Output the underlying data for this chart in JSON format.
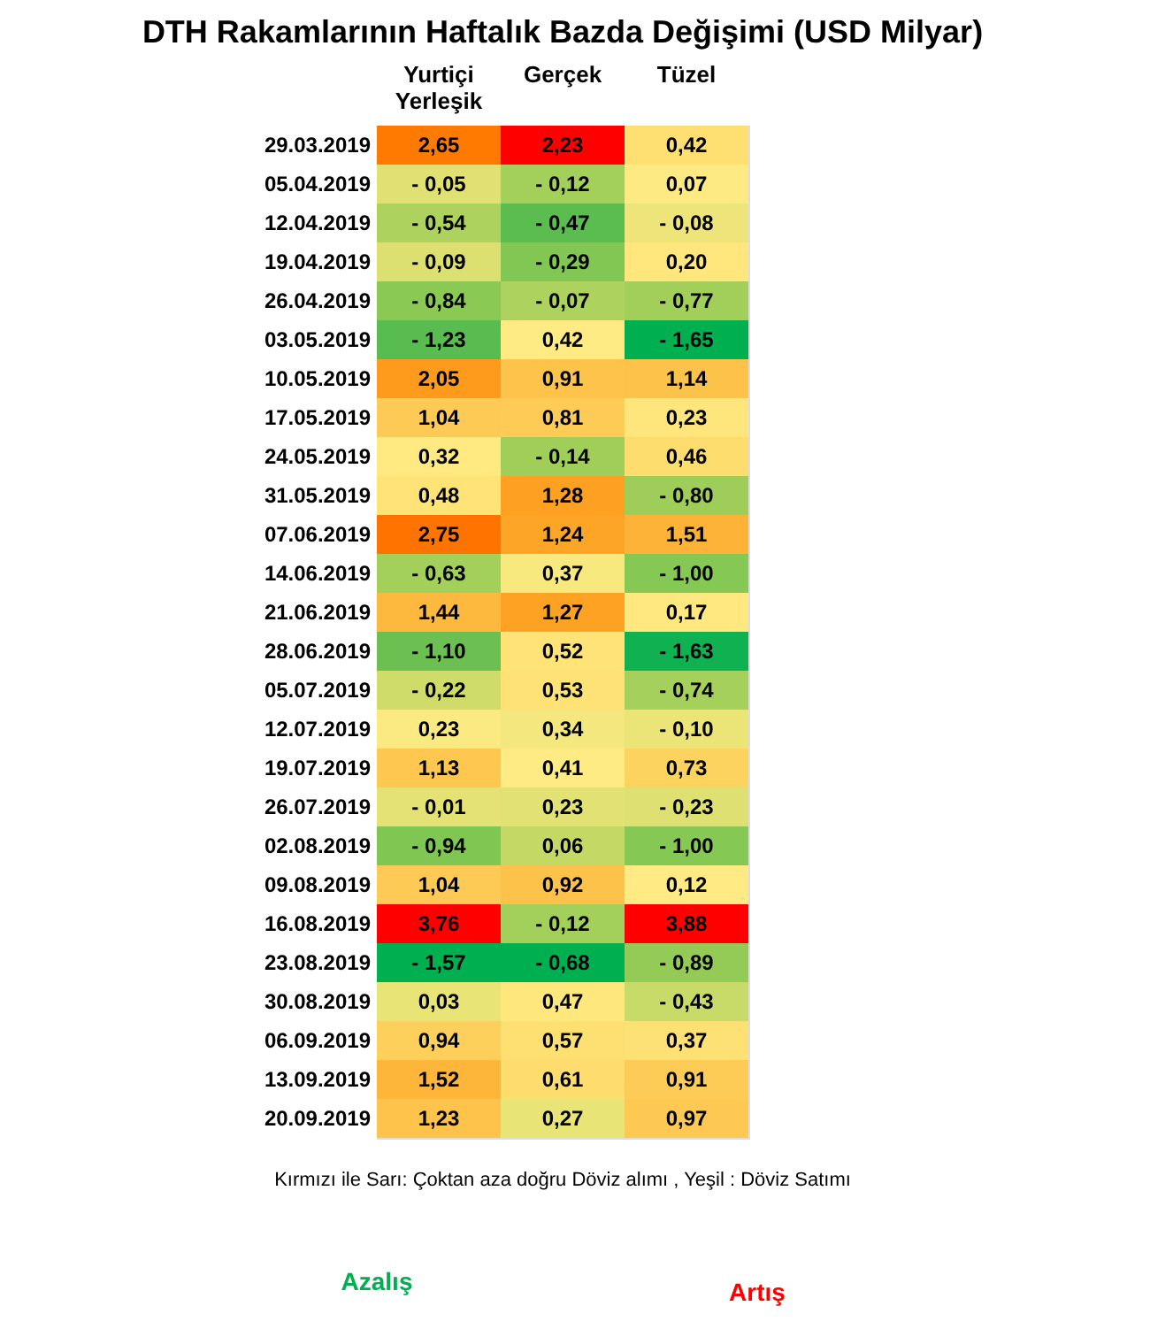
{
  "chart_data": {
    "type": "heatmap",
    "title": "DTH Rakamlarının Haftalık Bazda Değişimi (USD Milyar)",
    "categories": [
      "Yurtiçi Yerleşik",
      "Gerçek",
      "Tüzel"
    ],
    "y_categories": [
      "29.03.2019",
      "05.04.2019",
      "12.04.2019",
      "19.04.2019",
      "26.04.2019",
      "03.05.2019",
      "10.05.2019",
      "17.05.2019",
      "24.05.2019",
      "31.05.2019",
      "07.06.2019",
      "14.06.2019",
      "21.06.2019",
      "28.06.2019",
      "05.07.2019",
      "12.07.2019",
      "19.07.2019",
      "26.07.2019",
      "02.08.2019",
      "09.08.2019",
      "16.08.2019",
      "23.08.2019",
      "30.08.2019",
      "06.09.2019",
      "13.09.2019",
      "20.09.2019"
    ],
    "cells": [
      [
        2.65,
        2.23,
        0.42
      ],
      [
        -0.05,
        -0.12,
        0.07
      ],
      [
        -0.54,
        -0.47,
        -0.08
      ],
      [
        -0.09,
        -0.29,
        0.2
      ],
      [
        -0.84,
        -0.07,
        -0.77
      ],
      [
        -1.23,
        0.42,
        -1.65
      ],
      [
        2.05,
        0.91,
        1.14
      ],
      [
        1.04,
        0.81,
        0.23
      ],
      [
        0.32,
        -0.14,
        0.46
      ],
      [
        0.48,
        1.28,
        -0.8
      ],
      [
        2.75,
        1.24,
        1.51
      ],
      [
        -0.63,
        0.37,
        -1.0
      ],
      [
        1.44,
        1.27,
        0.17
      ],
      [
        -1.1,
        0.52,
        -1.63
      ],
      [
        -0.22,
        0.53,
        -0.74
      ],
      [
        0.23,
        0.34,
        -0.1
      ],
      [
        1.13,
        0.41,
        0.73
      ],
      [
        -0.01,
        0.23,
        -0.23
      ],
      [
        -0.94,
        0.06,
        -1.0
      ],
      [
        1.04,
        0.92,
        0.12
      ],
      [
        3.76,
        -0.12,
        3.88
      ],
      [
        -1.57,
        -0.68,
        -0.89
      ],
      [
        0.03,
        0.47,
        -0.43
      ],
      [
        0.94,
        0.57,
        0.37
      ],
      [
        1.52,
        0.61,
        0.91
      ],
      [
        1.23,
        0.27,
        0.97
      ]
    ],
    "cell_labels": [
      [
        "2,65",
        "2,23",
        "0,42"
      ],
      [
        "-   0,05",
        "-   0,12",
        "0,07"
      ],
      [
        "-   0,54",
        "-   0,47",
        "-   0,08"
      ],
      [
        "-   0,09",
        "-   0,29",
        "0,20"
      ],
      [
        "-   0,84",
        "-   0,07",
        "-   0,77"
      ],
      [
        "-   1,23",
        "0,42",
        "-   1,65"
      ],
      [
        "2,05",
        "0,91",
        "1,14"
      ],
      [
        "1,04",
        "0,81",
        "0,23"
      ],
      [
        "0,32",
        "-   0,14",
        "0,46"
      ],
      [
        "0,48",
        "1,28",
        "-   0,80"
      ],
      [
        "2,75",
        "1,24",
        "1,51"
      ],
      [
        "-   0,63",
        "0,37",
        "-   1,00"
      ],
      [
        "1,44",
        "1,27",
        "0,17"
      ],
      [
        "-   1,10",
        "0,52",
        "-   1,63"
      ],
      [
        "-   0,22",
        "0,53",
        "-   0,74"
      ],
      [
        "0,23",
        "0,34",
        "-   0,10"
      ],
      [
        "1,13",
        "0,41",
        "0,73"
      ],
      [
        "-   0,01",
        "0,23",
        "-   0,23"
      ],
      [
        "-   0,94",
        "0,06",
        "-   1,00"
      ],
      [
        "1,04",
        "0,92",
        "0,12"
      ],
      [
        "3,76",
        "-   0,12",
        "3,88"
      ],
      [
        "-   1,57",
        "-   0,68",
        "-   0,89"
      ],
      [
        "0,03",
        "0,47",
        "-   0,43"
      ],
      [
        "0,94",
        "0,57",
        "0,37"
      ],
      [
        "1,52",
        "0,61",
        "0,91"
      ],
      [
        "1,23",
        "0,27",
        "0,97"
      ]
    ],
    "colors": [
      "#00b050",
      "#ffeb84",
      "#ff0000"
    ],
    "annotations": [
      "Kırmızı ile Sarı: Çoktan aza doğru Döviz alımı , Yeşil : Döviz Satımı",
      "Azalış",
      "Artış"
    ],
    "legend": false,
    "grid": false
  }
}
